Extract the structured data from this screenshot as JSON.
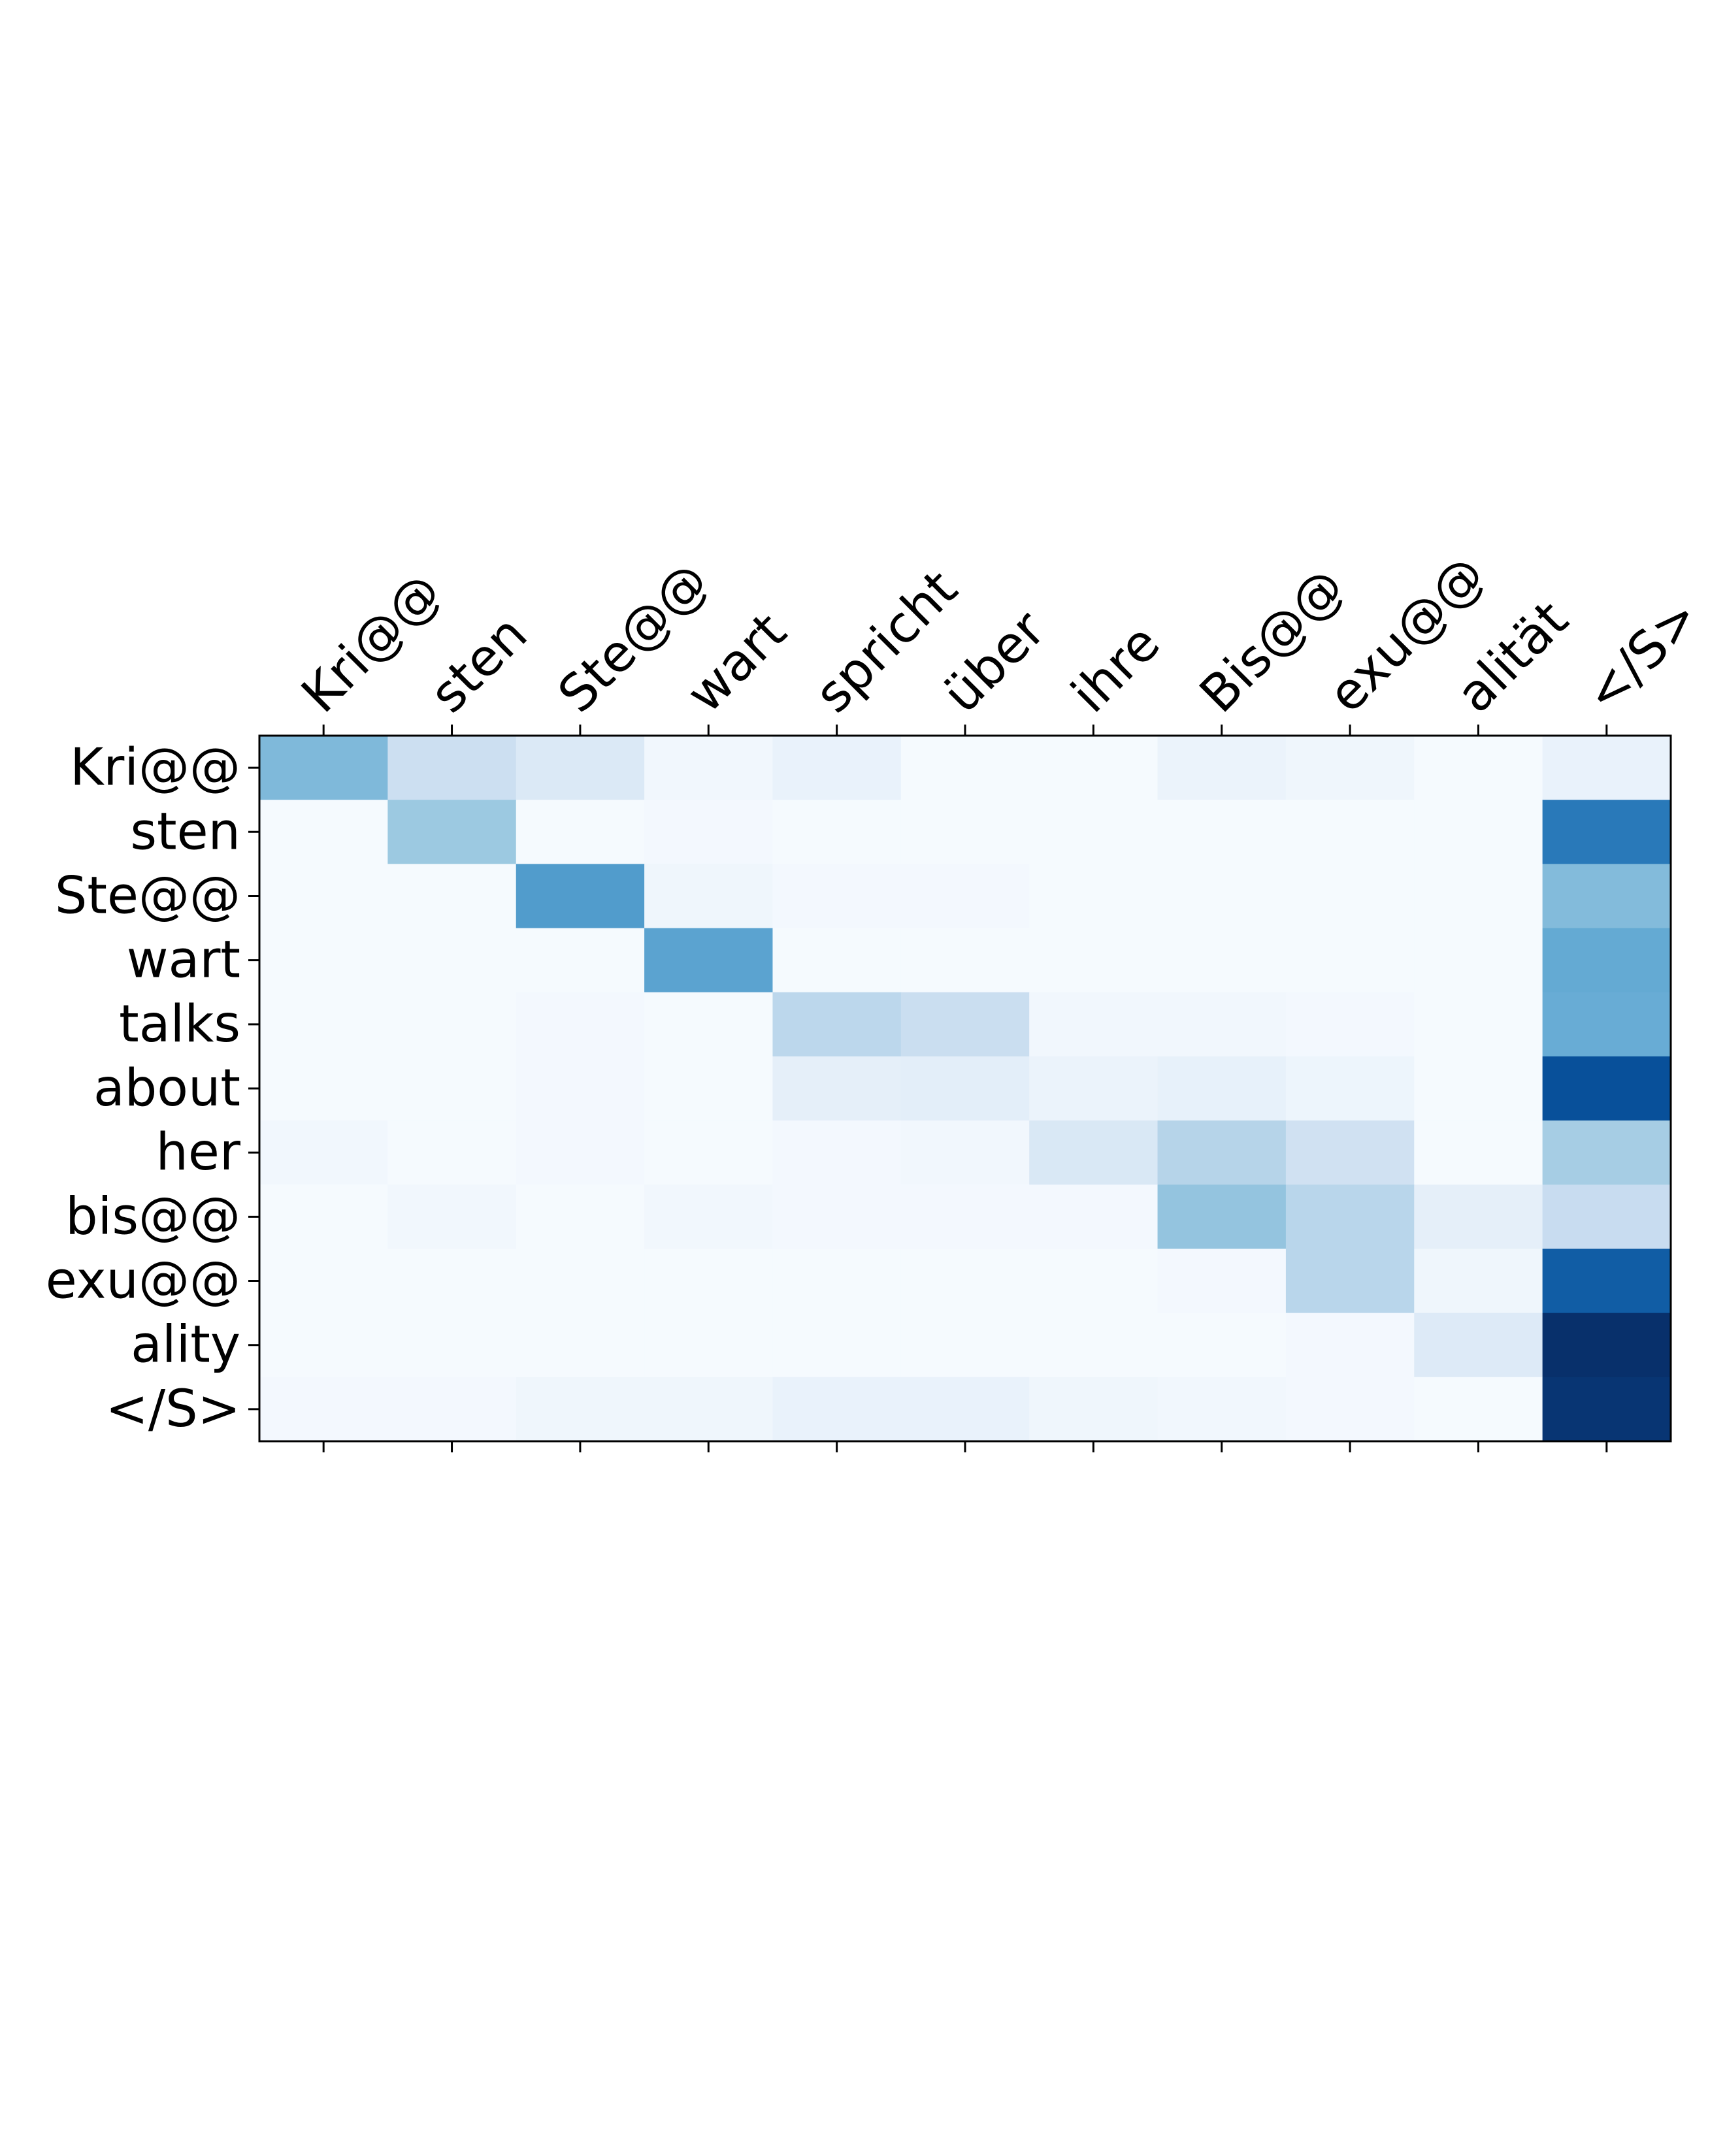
{
  "chart_data": {
    "type": "heatmap",
    "colormap": "Blues",
    "value_range": [
      0,
      1
    ],
    "x_labels": [
      "Kri@@",
      "sten",
      "Ste@@",
      "wart",
      "spricht",
      "über",
      "ihre",
      "Bis@@",
      "exu@@",
      "alität",
      "</S>"
    ],
    "y_labels": [
      "Kri@@",
      "sten",
      "Ste@@",
      "wart",
      "talks",
      "about",
      "her",
      "bis@@",
      "exu@@",
      "ality",
      "</S>"
    ],
    "x_axis_position": "top",
    "grid": false,
    "values": [
      [
        0.45,
        0.22,
        0.14,
        0.03,
        0.07,
        0.01,
        0.01,
        0.06,
        0.04,
        0.01,
        0.07
      ],
      [
        0.01,
        0.38,
        0.01,
        0.02,
        0.01,
        0.01,
        0.01,
        0.01,
        0.01,
        0.01,
        0.72
      ],
      [
        0.01,
        0.01,
        0.58,
        0.04,
        0.02,
        0.02,
        0.01,
        0.01,
        0.01,
        0.01,
        0.44
      ],
      [
        0.01,
        0.01,
        0.01,
        0.55,
        0.01,
        0.01,
        0.01,
        0.01,
        0.01,
        0.01,
        0.52
      ],
      [
        0.01,
        0.01,
        0.02,
        0.01,
        0.28,
        0.23,
        0.03,
        0.03,
        0.02,
        0.01,
        0.51
      ],
      [
        0.01,
        0.01,
        0.02,
        0.01,
        0.09,
        0.1,
        0.06,
        0.08,
        0.05,
        0.01,
        0.88
      ],
      [
        0.03,
        0.01,
        0.02,
        0.01,
        0.02,
        0.03,
        0.15,
        0.3,
        0.2,
        0.01,
        0.35
      ],
      [
        0.01,
        0.03,
        0.01,
        0.03,
        0.02,
        0.02,
        0.02,
        0.4,
        0.29,
        0.09,
        0.24
      ],
      [
        0.01,
        0.01,
        0.01,
        0.01,
        0.01,
        0.01,
        0.01,
        0.02,
        0.29,
        0.04,
        0.83
      ],
      [
        0.01,
        0.01,
        0.01,
        0.01,
        0.01,
        0.01,
        0.01,
        0.01,
        0.02,
        0.13,
        1.0
      ],
      [
        0.02,
        0.02,
        0.04,
        0.04,
        0.07,
        0.07,
        0.04,
        0.03,
        0.02,
        0.01,
        0.98
      ]
    ]
  }
}
